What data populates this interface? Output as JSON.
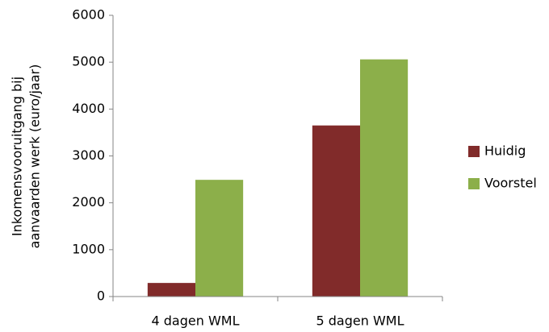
{
  "chart_data": {
    "type": "bar",
    "categories": [
      "4 dagen WML",
      "5 dagen WML"
    ],
    "series": [
      {
        "name": "Huidig",
        "color": "#812b2a",
        "values": [
          290,
          3650
        ]
      },
      {
        "name": "Voorstel",
        "color": "#8caf4a",
        "values": [
          2490,
          5060
        ]
      }
    ],
    "ylabel": [
      "Inkomensvooruitgang bij",
      "aanvaarden werk (euro/jaar)"
    ],
    "ylim": [
      0,
      6000
    ],
    "yticks": [
      0,
      1000,
      2000,
      3000,
      4000,
      5000,
      6000
    ],
    "grid": false,
    "legend": "right"
  }
}
